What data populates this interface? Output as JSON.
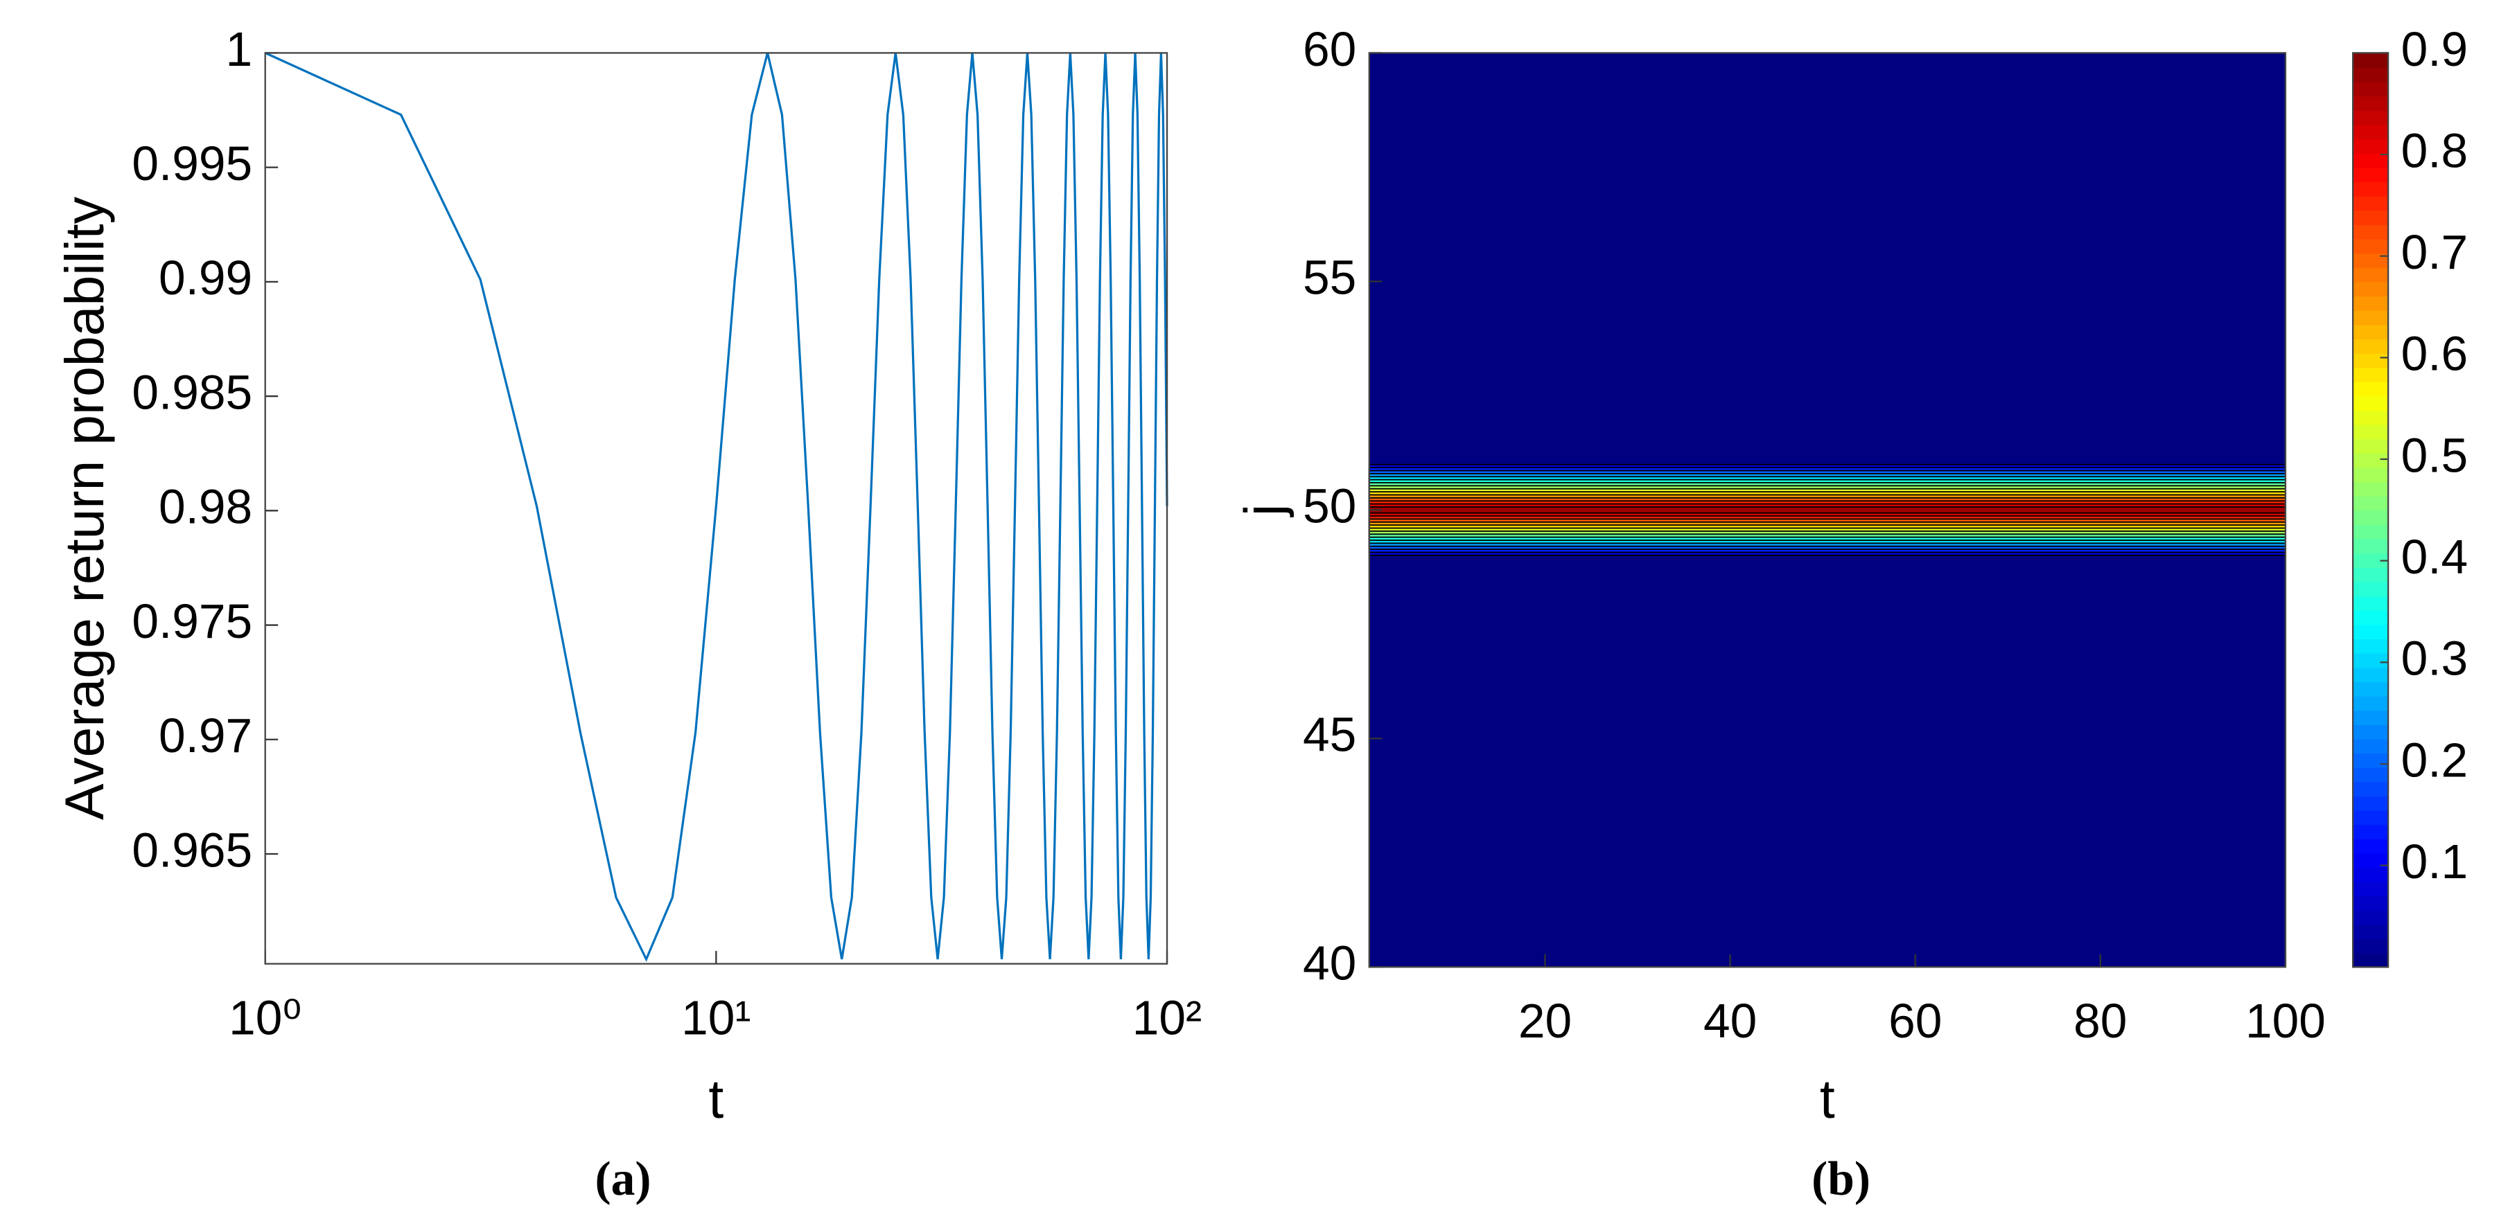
{
  "chart_data": [
    {
      "type": "line",
      "caption": "(a)",
      "x_label": "t",
      "y_label": "Average return probability",
      "x_log": true,
      "color": "#0072bd",
      "x": [
        1,
        2,
        3,
        4,
        5,
        6,
        7,
        8,
        9,
        10,
        11,
        12,
        13,
        14,
        15,
        16,
        17,
        18,
        19,
        20,
        21,
        22,
        23,
        24,
        25,
        26,
        27,
        28,
        29,
        30,
        31,
        32,
        33,
        34,
        35,
        36,
        37,
        38,
        39,
        40,
        41,
        42,
        43,
        44,
        45,
        46,
        47,
        48,
        49,
        50,
        51,
        52,
        53,
        54,
        55,
        56,
        57,
        58,
        59,
        60,
        61,
        62,
        63,
        64,
        65,
        66,
        67,
        68,
        69,
        70,
        71,
        72,
        73,
        74,
        75,
        76,
        77,
        78,
        79,
        80,
        81,
        82,
        83,
        84,
        85,
        86,
        87,
        88,
        89,
        90,
        91,
        92,
        93,
        94,
        95,
        96,
        97,
        98,
        99,
        100
      ],
      "values": [
        1,
        0.9973,
        0.9901,
        0.9802,
        0.9703,
        0.9631,
        0.9604,
        0.9631,
        0.9703,
        0.9802,
        0.9901,
        0.9973,
        1,
        0.9973,
        0.9901,
        0.9802,
        0.9703,
        0.9631,
        0.9604,
        0.9631,
        0.9703,
        0.9802,
        0.9901,
        0.9973,
        1,
        0.9973,
        0.9901,
        0.9802,
        0.9703,
        0.9631,
        0.9604,
        0.9631,
        0.9703,
        0.9802,
        0.9901,
        0.9973,
        1,
        0.9973,
        0.9901,
        0.9802,
        0.9703,
        0.9631,
        0.9604,
        0.9631,
        0.9703,
        0.9802,
        0.9901,
        0.9973,
        1,
        0.9973,
        0.9901,
        0.9802,
        0.9703,
        0.9631,
        0.9604,
        0.9631,
        0.9703,
        0.9802,
        0.9901,
        0.9973,
        1,
        0.9973,
        0.9901,
        0.9802,
        0.9703,
        0.9631,
        0.9604,
        0.9631,
        0.9703,
        0.9802,
        0.9901,
        0.9973,
        1,
        0.9973,
        0.9901,
        0.9802,
        0.9703,
        0.9631,
        0.9604,
        0.9631,
        0.9703,
        0.9802,
        0.9901,
        0.9973,
        1,
        0.9973,
        0.9901,
        0.9802,
        0.9703,
        0.9631,
        0.9604,
        0.9631,
        0.9703,
        0.9802,
        0.9901,
        0.9973,
        1,
        0.9973,
        0.9901,
        0.9802
      ],
      "xlim": [
        1,
        100
      ],
      "xticks": [
        {
          "value": 1,
          "label": "10⁰"
        },
        {
          "value": 10,
          "label": "10¹"
        },
        {
          "value": 100,
          "label": "10²"
        }
      ],
      "ylim": [
        0.9602,
        1
      ],
      "yticks": [
        0.965,
        0.97,
        0.975,
        0.98,
        0.985,
        0.99,
        0.995,
        1
      ]
    },
    {
      "type": "contour",
      "caption": "(b)",
      "x_label": "t",
      "y_label": "j",
      "colormap": "jet",
      "y": [
        48,
        49,
        50,
        51,
        52
      ],
      "values": [
        0,
        0.05,
        0.9,
        0.05,
        0
      ],
      "xlim": [
        1,
        100
      ],
      "xticks": [
        20,
        40,
        60,
        80,
        100
      ],
      "ylim": [
        40,
        60
      ],
      "yticks": [
        40,
        45,
        50,
        55,
        60
      ],
      "clim": [
        0,
        0.9
      ],
      "cticks": [
        0.1,
        0.2,
        0.3,
        0.4,
        0.5,
        0.6,
        0.7,
        0.8,
        0.9
      ]
    }
  ]
}
